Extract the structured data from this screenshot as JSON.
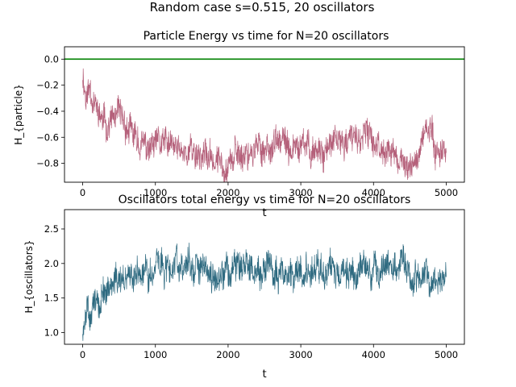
{
  "figure": {
    "suptitle": "Random case s=0.515, 20 oscillators",
    "background": "#ffffff"
  },
  "chart_data": [
    {
      "type": "line",
      "title": "Particle Energy vs time for N=20 oscillators",
      "xlabel": "t",
      "ylabel": "H_{particle}",
      "xlim": [
        -250,
        5250
      ],
      "ylim": [
        -0.945,
        0.095
      ],
      "xticks": [
        0,
        1000,
        2000,
        3000,
        4000,
        5000
      ],
      "xtick_labels": [
        "0",
        "1000",
        "2000",
        "3000",
        "4000",
        "5000"
      ],
      "yticks": [
        0.0,
        -0.2,
        -0.4,
        -0.6,
        -0.8
      ],
      "ytick_labels": [
        "0.0",
        "−0.2",
        "−0.4",
        "−0.6",
        "−0.8"
      ],
      "grid": false,
      "series": [
        {
          "color": "#b5607a",
          "x_range": [
            0,
            5000
          ],
          "noise_amplitude": 0.13,
          "trend_x": [
            0,
            50,
            100,
            200,
            300,
            500,
            700,
            900,
            1100,
            1300,
            1500,
            1700,
            1900,
            2100,
            2300,
            2500,
            2700,
            2900,
            3100,
            3300,
            3500,
            3700,
            3900,
            4100,
            4300,
            4400,
            4500,
            4600,
            4700,
            4800,
            4900,
            5000
          ],
          "trend_y": [
            -0.1,
            -0.3,
            -0.2,
            -0.4,
            -0.5,
            -0.45,
            -0.6,
            -0.7,
            -0.65,
            -0.7,
            -0.7,
            -0.75,
            -0.8,
            -0.75,
            -0.7,
            -0.68,
            -0.65,
            -0.7,
            -0.68,
            -0.7,
            -0.65,
            -0.62,
            -0.6,
            -0.66,
            -0.75,
            -0.8,
            -0.85,
            -0.78,
            -0.52,
            -0.6,
            -0.7,
            -0.7
          ]
        },
        {
          "color": "#008000",
          "x": [
            -250,
            5250
          ],
          "y": [
            0.0,
            0.0
          ]
        }
      ]
    },
    {
      "type": "line",
      "title": "Oscillators total energy vs time for N=20 oscillators",
      "xlabel": "t",
      "ylabel": "H_{oscillators}",
      "xlim": [
        -250,
        5250
      ],
      "ylim": [
        0.83,
        2.78
      ],
      "xticks": [
        0,
        1000,
        2000,
        3000,
        4000,
        5000
      ],
      "xtick_labels": [
        "0",
        "1000",
        "2000",
        "3000",
        "4000",
        "5000"
      ],
      "yticks": [
        1.0,
        1.5,
        2.0,
        2.5
      ],
      "ytick_labels": [
        "1.0",
        "1.5",
        "2.0",
        "2.5"
      ],
      "grid": false,
      "series": [
        {
          "color": "#2e6a80",
          "x_range": [
            0,
            5000
          ],
          "noise_amplitude": 0.25,
          "trend_x": [
            0,
            50,
            100,
            200,
            300,
            500,
            700,
            900,
            1100,
            1300,
            1500,
            1700,
            1900,
            2100,
            2300,
            2500,
            2700,
            2900,
            3100,
            3300,
            3500,
            3700,
            3900,
            4100,
            4300,
            4500,
            4700,
            4900,
            5000
          ],
          "trend_y": [
            1.0,
            1.3,
            1.2,
            1.5,
            1.6,
            1.7,
            1.85,
            1.9,
            1.95,
            2.0,
            2.0,
            1.9,
            1.85,
            1.95,
            1.9,
            1.85,
            1.95,
            1.85,
            1.9,
            1.95,
            1.85,
            1.9,
            1.85,
            1.9,
            1.95,
            1.85,
            1.8,
            1.85,
            1.9
          ]
        }
      ]
    }
  ]
}
